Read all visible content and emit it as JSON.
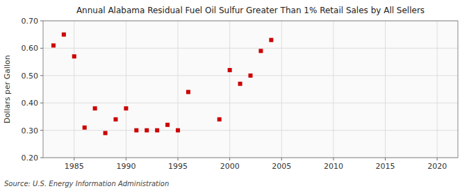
{
  "chart_data": {
    "type": "scatter",
    "title": "Annual Alabama Residual Fuel Oil Sulfur Greater Than 1% Retail Sales by All Sellers",
    "ylabel": "Dollars per Gallon",
    "source": "Source: U.S. Energy Information Administration",
    "color": "#cc0000",
    "marker": "square",
    "grid": true,
    "xlim": [
      1982,
      2022
    ],
    "ylim": [
      0.2,
      0.7
    ],
    "xticks": [
      1985,
      1990,
      1995,
      2000,
      2005,
      2010,
      2015,
      2020
    ],
    "yticks": [
      {
        "value": 0.2,
        "label": "0.20"
      },
      {
        "value": 0.3,
        "label": "0.30"
      },
      {
        "value": 0.4,
        "label": "0.40"
      },
      {
        "value": 0.5,
        "label": "0.50"
      },
      {
        "value": 0.6,
        "label": "0.60"
      },
      {
        "value": 0.7,
        "label": "0.70"
      }
    ],
    "x": [
      1983,
      1984,
      1985,
      1986,
      1987,
      1988,
      1989,
      1990,
      1991,
      1992,
      1993,
      1994,
      1995,
      1996,
      1999,
      2000,
      2001,
      2002,
      2003,
      2004
    ],
    "values": [
      0.61,
      0.65,
      0.57,
      0.31,
      0.38,
      0.29,
      0.34,
      0.38,
      0.3,
      0.3,
      0.3,
      0.32,
      0.3,
      0.44,
      0.34,
      0.52,
      0.47,
      0.5,
      0.59,
      0.63
    ]
  }
}
